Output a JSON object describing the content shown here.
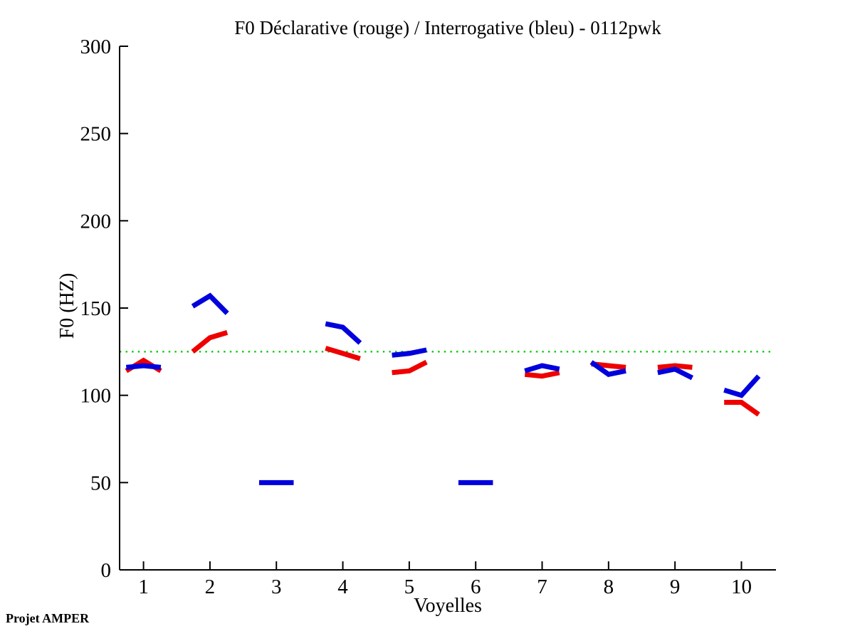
{
  "window": {
    "background": "#ffffff"
  },
  "chart_data": {
    "type": "line",
    "title": "F0 Déclarative (rouge) / Interrogative (bleu) - 0112pwk",
    "xlabel": "Voyelles",
    "ylabel": "F0 (HZ)",
    "footer": "Projet AMPER",
    "xlim": [
      0.64,
      10.52
    ],
    "ylim": [
      0,
      300
    ],
    "xticks": [
      1,
      2,
      3,
      4,
      5,
      6,
      7,
      8,
      9,
      10
    ],
    "yticks": [
      0,
      50,
      100,
      150,
      200,
      250,
      300
    ],
    "grid": false,
    "legend_position": "none",
    "axis_color": "#000000",
    "reference_line": {
      "y": 125,
      "color": "#00cc00",
      "style": "dotted"
    },
    "segment_half_width": 0.26,
    "series": [
      {
        "name": "Déclarative (rouge)",
        "color": "#ee0000",
        "segments": [
          {
            "x": 1,
            "values": [
              114,
              120,
              114
            ]
          },
          {
            "x": 2,
            "values": [
              125,
              133,
              136
            ]
          },
          {
            "x": 4,
            "values": [
              127,
              124,
              121
            ]
          },
          {
            "x": 5,
            "values": [
              113,
              114,
              119
            ]
          },
          {
            "x": 7,
            "values": [
              112,
              111,
              113
            ]
          },
          {
            "x": 8,
            "values": [
              118,
              117,
              116
            ]
          },
          {
            "x": 9,
            "values": [
              116,
              117,
              116
            ]
          },
          {
            "x": 10,
            "values": [
              96,
              96,
              89
            ]
          }
        ]
      },
      {
        "name": "Interrogative (bleu)",
        "color": "#0000dd",
        "segments": [
          {
            "x": 1,
            "values": [
              116,
              117,
              116
            ]
          },
          {
            "x": 2,
            "values": [
              151,
              157,
              147
            ]
          },
          {
            "x": 3,
            "values": [
              50,
              50,
              50
            ]
          },
          {
            "x": 4,
            "values": [
              141,
              139,
              130
            ]
          },
          {
            "x": 5,
            "values": [
              123,
              124,
              126
            ]
          },
          {
            "x": 6,
            "values": [
              50,
              50,
              50
            ]
          },
          {
            "x": 7,
            "values": [
              114,
              117,
              115
            ]
          },
          {
            "x": 8,
            "values": [
              119,
              112,
              114
            ]
          },
          {
            "x": 9,
            "values": [
              113,
              115,
              110
            ]
          },
          {
            "x": 10,
            "values": [
              103,
              100,
              111
            ]
          }
        ]
      }
    ]
  }
}
